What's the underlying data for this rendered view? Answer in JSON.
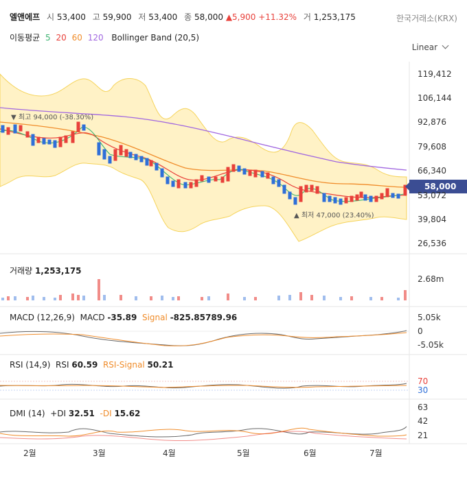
{
  "header": {
    "name": "엘앤에프",
    "open_label": "시",
    "open": "53,400",
    "high_label": "고",
    "high": "59,900",
    "low_label": "저",
    "low": "53,400",
    "close_label": "종",
    "close": "58,000",
    "change": "5,900",
    "change_pct": "+11.32%",
    "volume_label": "거",
    "volume": "1,253,175",
    "exchange": "한국거래소(KRX)"
  },
  "ma_legend": {
    "title": "이동평균",
    "ma5": "5",
    "ma20": "20",
    "ma60": "60",
    "ma120": "120",
    "bollinger": "Bollinger Band (20,5)"
  },
  "scale_select": "Linear",
  "price_axis": [
    "119,412",
    "106,144",
    "92,876",
    "79,608",
    "66,340",
    "53,072",
    "39,804",
    "26,536"
  ],
  "current_price": "58,000",
  "annotations": {
    "high": "최고 94,000 (-38.30%)",
    "low": "최저 47,000 (23.40%)"
  },
  "volume_panel": {
    "label": "거래량",
    "value": "1,253,175",
    "axis": [
      "2.68m"
    ]
  },
  "macd_panel": {
    "label": "MACD (12,26,9)",
    "macd_label": "MACD",
    "macd": "-35.89",
    "signal_label": "Signal",
    "signal": "-825.85789.96",
    "axis": [
      "5.05k",
      "0",
      "-5.05k"
    ]
  },
  "rsi_panel": {
    "label": "RSI (14,9)",
    "rsi_label": "RSI",
    "rsi": "60.59",
    "sig_label": "RSI-Signal",
    "sig": "50.21",
    "axis": [
      "70",
      "30"
    ]
  },
  "dmi_panel": {
    "label": "DMI (14)",
    "pdi_label": "+DI",
    "pdi": "32.51",
    "mdi_label": "-DI",
    "mdi": "15.62",
    "axis": [
      "63",
      "42",
      "21"
    ]
  },
  "x_axis": [
    "2월",
    "3월",
    "4월",
    "5월",
    "6월",
    "7월"
  ],
  "colors": {
    "up": "#e8403a",
    "down": "#2f6fd8",
    "ma5": "#3cb371",
    "ma20": "#e8403a",
    "ma60": "#f08c2a",
    "ma120": "#a066e0",
    "band": "#fff2c6",
    "band_line": "#f5d35a"
  },
  "chart_data": {
    "type": "candlestick",
    "price_range": [
      26536,
      119412
    ],
    "series": [
      {
        "name": "ma120",
        "values": [
          99000,
          98000,
          97000,
          95500,
          94000,
          92500,
          90500,
          88000,
          86000,
          84000,
          81500,
          79000,
          77000,
          74500,
          72000,
          70000,
          68500,
          67000,
          66000,
          65000
        ]
      },
      {
        "name": "ma60",
        "values": [
          92000,
          90000,
          88500,
          86000,
          82000,
          79000,
          75500,
          72000,
          68000,
          64500,
          62000,
          62500,
          63500,
          63000,
          60000,
          57000,
          55000,
          53500,
          55000,
          56500
        ]
      },
      {
        "name": "ma20",
        "values": [
          87000,
          84000,
          86000,
          90000,
          78000,
          74000,
          73000,
          68000,
          59000,
          62000,
          61000,
          69000,
          67000,
          62000,
          53000,
          55000,
          52000,
          52500,
          55000,
          55500
        ]
      }
    ],
    "closes": [
      88000,
      82000,
      83000,
      91000,
      76000,
      74000,
      72000,
      64000,
      57000,
      61000,
      62000,
      70000,
      66000,
      60000,
      49000,
      56000,
      51000,
      52000,
      55000,
      58000
    ]
  }
}
